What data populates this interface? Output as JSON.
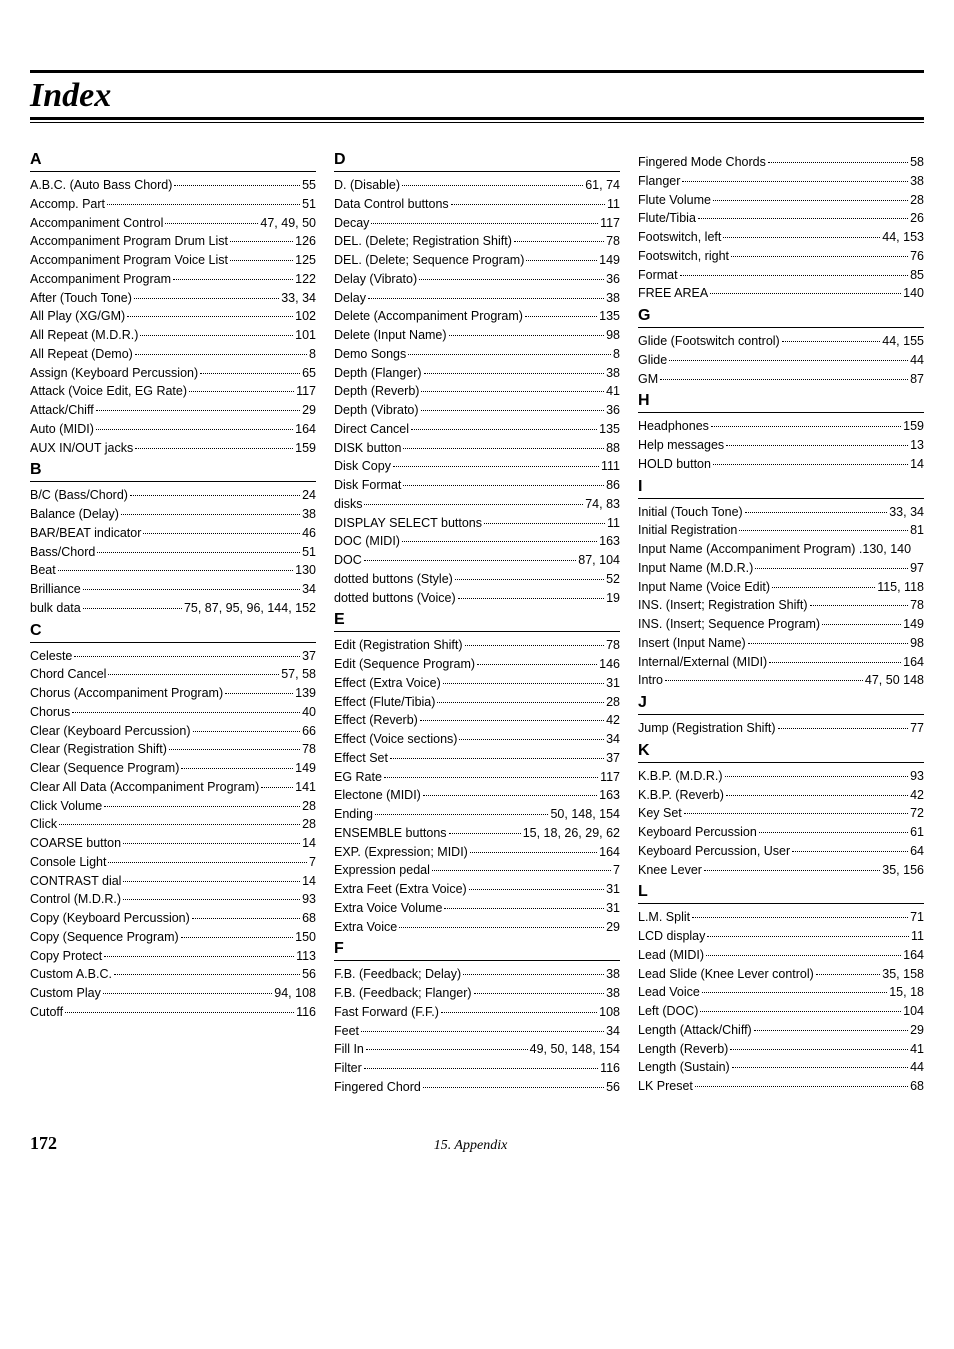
{
  "title": "Index",
  "page_number": "172",
  "appendix_label": "15. Appendix",
  "columns": [
    {
      "sections": [
        {
          "letter": "A",
          "entries": [
            {
              "label": "A.B.C. (Auto Bass Chord)",
              "pages": "55"
            },
            {
              "label": "Accomp. Part",
              "pages": "51"
            },
            {
              "label": "Accompaniment Control",
              "pages": "47, 49, 50"
            },
            {
              "label": "Accompaniment Program Drum List",
              "pages": "126"
            },
            {
              "label": "Accompaniment Program Voice List",
              "pages": "125"
            },
            {
              "label": "Accompaniment Program",
              "pages": "122"
            },
            {
              "label": "After (Touch Tone)",
              "pages": "33, 34"
            },
            {
              "label": "All Play (XG/GM)",
              "pages": "102"
            },
            {
              "label": "All Repeat  (M.D.R.)",
              "pages": "101"
            },
            {
              "label": "All Repeat (Demo)",
              "pages": "8"
            },
            {
              "label": "Assign (Keyboard Percussion)",
              "pages": "65"
            },
            {
              "label": "Attack (Voice Edit, EG Rate)",
              "pages": "117"
            },
            {
              "label": "Attack/Chiff",
              "pages": "29"
            },
            {
              "label": "Auto (MIDI)",
              "pages": "164"
            },
            {
              "label": "AUX IN/OUT jacks",
              "pages": "159"
            }
          ]
        },
        {
          "letter": "B",
          "entries": [
            {
              "label": "B/C (Bass/Chord)",
              "pages": "24"
            },
            {
              "label": "Balance (Delay)",
              "pages": "38"
            },
            {
              "label": "BAR/BEAT indicator",
              "pages": "46"
            },
            {
              "label": "Bass/Chord",
              "pages": "51"
            },
            {
              "label": "Beat",
              "pages": "130"
            },
            {
              "label": "Brilliance",
              "pages": "34"
            },
            {
              "label": "bulk data",
              "pages": "75, 87, 95, 96, 144, 152"
            }
          ]
        },
        {
          "letter": "C",
          "entries": [
            {
              "label": "Celeste",
              "pages": "37"
            },
            {
              "label": "Chord Cancel",
              "pages": "57, 58"
            },
            {
              "label": "Chorus (Accompaniment Program)",
              "pages": "139"
            },
            {
              "label": "Chorus",
              "pages": "40"
            },
            {
              "label": "Clear (Keyboard Percussion)",
              "pages": "66"
            },
            {
              "label": "Clear (Registration Shift)",
              "pages": "78"
            },
            {
              "label": "Clear (Sequence Program)",
              "pages": "149"
            },
            {
              "label": "Clear All Data (Accompaniment Program)",
              "pages": "141"
            },
            {
              "label": "Click Volume",
              "pages": "28"
            },
            {
              "label": "Click",
              "pages": "28"
            },
            {
              "label": "COARSE button",
              "pages": "14"
            },
            {
              "label": "Console Light",
              "pages": "7"
            },
            {
              "label": "CONTRAST dial",
              "pages": "14"
            },
            {
              "label": "Control (M.D.R.)",
              "pages": "93"
            },
            {
              "label": "Copy (Keyboard Percussion)",
              "pages": "68"
            },
            {
              "label": "Copy (Sequence Program)",
              "pages": "150"
            },
            {
              "label": "Copy Protect",
              "pages": "113"
            },
            {
              "label": "Custom A.B.C.",
              "pages": "56"
            },
            {
              "label": "Custom Play",
              "pages": "94, 108"
            },
            {
              "label": "Cutoff",
              "pages": "116"
            }
          ]
        }
      ]
    },
    {
      "sections": [
        {
          "letter": "D",
          "entries": [
            {
              "label": "D. (Disable)",
              "pages": "61, 74"
            },
            {
              "label": "Data Control buttons",
              "pages": "11"
            },
            {
              "label": "Decay",
              "pages": "117"
            },
            {
              "label": "DEL. (Delete; Registration Shift)",
              "pages": "78"
            },
            {
              "label": "DEL. (Delete; Sequence Program)",
              "pages": "149"
            },
            {
              "label": "Delay (Vibrato)",
              "pages": "36"
            },
            {
              "label": "Delay",
              "pages": "38"
            },
            {
              "label": "Delete (Accompaniment Program)",
              "pages": "135"
            },
            {
              "label": "Delete (Input Name)",
              "pages": "98"
            },
            {
              "label": "Demo Songs",
              "pages": "8"
            },
            {
              "label": "Depth (Flanger)",
              "pages": "38"
            },
            {
              "label": "Depth (Reverb)",
              "pages": "41"
            },
            {
              "label": "Depth (Vibrato)",
              "pages": "36"
            },
            {
              "label": "Direct Cancel",
              "pages": "135"
            },
            {
              "label": "DISK button",
              "pages": "88"
            },
            {
              "label": "Disk Copy",
              "pages": "111"
            },
            {
              "label": "Disk Format",
              "pages": "86"
            },
            {
              "label": "disks",
              "pages": "74, 83"
            },
            {
              "label": "DISPLAY SELECT buttons",
              "pages": "11"
            },
            {
              "label": "DOC (MIDI)",
              "pages": "163"
            },
            {
              "label": "DOC",
              "pages": "87, 104"
            },
            {
              "label": "dotted buttons (Style)",
              "pages": "52"
            },
            {
              "label": "dotted buttons (Voice)",
              "pages": "19"
            }
          ]
        },
        {
          "letter": "E",
          "entries": [
            {
              "label": "Edit (Registration Shift)",
              "pages": "78"
            },
            {
              "label": "Edit (Sequence Program)",
              "pages": "146"
            },
            {
              "label": "Effect (Extra Voice)",
              "pages": "31"
            },
            {
              "label": "Effect (Flute/Tibia)",
              "pages": "28"
            },
            {
              "label": "Effect (Reverb)",
              "pages": "42"
            },
            {
              "label": "Effect (Voice sections)",
              "pages": "34"
            },
            {
              "label": "Effect Set",
              "pages": "37"
            },
            {
              "label": "EG Rate",
              "pages": "117"
            },
            {
              "label": "Electone (MIDI)",
              "pages": "163"
            },
            {
              "label": "Ending",
              "pages": "50, 148, 154"
            },
            {
              "label": "ENSEMBLE buttons",
              "pages": "15, 18, 26, 29, 62"
            },
            {
              "label": "EXP. (Expression; MIDI)",
              "pages": "164"
            },
            {
              "label": "Expression pedal",
              "pages": "7"
            },
            {
              "label": "Extra Feet (Extra Voice)",
              "pages": "31"
            },
            {
              "label": "Extra Voice Volume",
              "pages": "31"
            },
            {
              "label": "Extra Voice",
              "pages": "29"
            }
          ]
        },
        {
          "letter": "F",
          "entries": [
            {
              "label": "F.B. (Feedback; Delay)",
              "pages": "38"
            },
            {
              "label": "F.B. (Feedback; Flanger)",
              "pages": "38"
            },
            {
              "label": "Fast Forward (F.F.)",
              "pages": "108"
            },
            {
              "label": "Feet",
              "pages": "34"
            },
            {
              "label": "Fill In",
              "pages": "49, 50, 148, 154"
            },
            {
              "label": "Filter",
              "pages": "116"
            },
            {
              "label": "Fingered Chord",
              "pages": "56"
            }
          ]
        }
      ]
    },
    {
      "sections": [
        {
          "letter": "",
          "entries": [
            {
              "label": "Fingered Mode Chords",
              "pages": "58"
            },
            {
              "label": "Flanger",
              "pages": "38"
            },
            {
              "label": "Flute Volume",
              "pages": "28"
            },
            {
              "label": "Flute/Tibia",
              "pages": "26"
            },
            {
              "label": "Footswitch, left",
              "pages": "44, 153"
            },
            {
              "label": "Footswitch, right",
              "pages": "76"
            },
            {
              "label": "Format",
              "pages": "85"
            },
            {
              "label": "FREE AREA",
              "pages": "140"
            }
          ]
        },
        {
          "letter": "G",
          "entries": [
            {
              "label": "Glide (Footswitch control)",
              "pages": "44, 155"
            },
            {
              "label": "Glide",
              "pages": "44"
            },
            {
              "label": "GM",
              "pages": "87"
            }
          ]
        },
        {
          "letter": "H",
          "entries": [
            {
              "label": "Headphones",
              "pages": "159"
            },
            {
              "label": "Help messages",
              "pages": "13"
            },
            {
              "label": "HOLD button",
              "pages": "14"
            }
          ]
        },
        {
          "letter": "I",
          "entries": [
            {
              "label": "Initial (Touch Tone)",
              "pages": "33, 34"
            },
            {
              "label": "Initial Registration",
              "pages": "81"
            },
            {
              "label": "Input Name (Accompaniment Program) .130, 140",
              "pages": "",
              "nodots": true
            },
            {
              "label": "Input Name (M.D.R.)",
              "pages": "97"
            },
            {
              "label": "Input Name (Voice Edit)",
              "pages": "115, 118"
            },
            {
              "label": "INS. (Insert; Registration Shift)",
              "pages": "78"
            },
            {
              "label": "INS. (Insert; Sequence Program)",
              "pages": "149"
            },
            {
              "label": "Insert (Input Name)",
              "pages": "98"
            },
            {
              "label": "Internal/External (MIDI)",
              "pages": "164"
            },
            {
              "label": "Intro",
              "pages": "47, 50 148"
            }
          ]
        },
        {
          "letter": "J",
          "entries": [
            {
              "label": "Jump (Registration Shift)",
              "pages": "77"
            }
          ]
        },
        {
          "letter": "K",
          "entries": [
            {
              "label": "K.B.P. (M.D.R.)",
              "pages": "93"
            },
            {
              "label": "K.B.P. (Reverb)",
              "pages": "42"
            },
            {
              "label": "Key Set",
              "pages": "72"
            },
            {
              "label": "Keyboard Percussion",
              "pages": "61"
            },
            {
              "label": "Keyboard Percussion, User",
              "pages": "64"
            },
            {
              "label": "Knee Lever",
              "pages": "35, 156"
            }
          ]
        },
        {
          "letter": "L",
          "entries": [
            {
              "label": "L.M. Split",
              "pages": "71"
            },
            {
              "label": "LCD display",
              "pages": "11"
            },
            {
              "label": "Lead (MIDI)",
              "pages": "164"
            },
            {
              "label": "Lead Slide (Knee Lever control)",
              "pages": "35, 158"
            },
            {
              "label": "Lead Voice",
              "pages": "15, 18"
            },
            {
              "label": "Left (DOC)",
              "pages": "104"
            },
            {
              "label": "Length (Attack/Chiff)",
              "pages": "29"
            },
            {
              "label": "Length (Reverb)",
              "pages": "41"
            },
            {
              "label": "Length (Sustain)",
              "pages": "44"
            },
            {
              "label": "LK Preset",
              "pages": "68"
            }
          ]
        }
      ]
    }
  ]
}
